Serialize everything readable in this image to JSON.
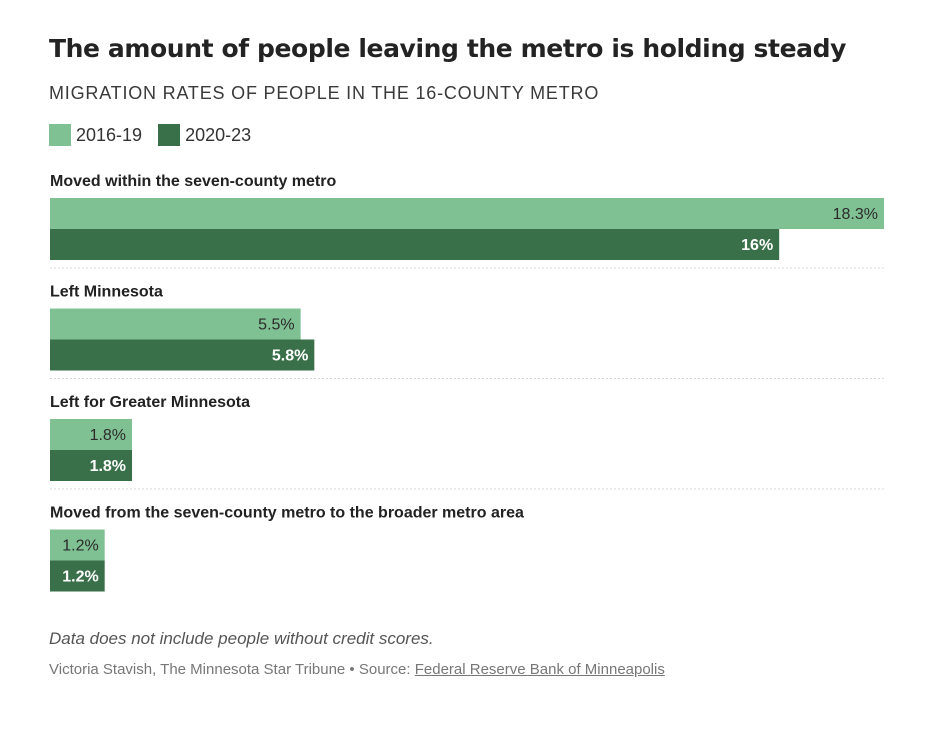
{
  "header": {
    "title": "The amount of people leaving the metro is holding steady",
    "subtitle": "MIGRATION RATES OF PEOPLE IN THE 16-COUNTY METRO"
  },
  "legend": {
    "items": [
      {
        "label": "2016-19",
        "color": "#80c194"
      },
      {
        "label": "2020-23",
        "color": "#3a7049"
      }
    ]
  },
  "chart_data": {
    "type": "bar",
    "orientation": "horizontal",
    "categories": [
      "Moved within the seven-county metro",
      "Left Minnesota",
      "Left for Greater Minnesota",
      "Moved from the seven-county metro to the broader metro area"
    ],
    "series": [
      {
        "name": "2016-19",
        "values": [
          18.3,
          5.5,
          1.8,
          1.2
        ],
        "labels": [
          "18.3%",
          "5.5%",
          "1.8%",
          "1.2%"
        ],
        "color": "#80c194",
        "label_color": "#2a2a2a"
      },
      {
        "name": "2020-23",
        "values": [
          16,
          5.8,
          1.8,
          1.2
        ],
        "labels": [
          "16%",
          "5.8%",
          "1.8%",
          "1.2%"
        ],
        "color": "#3a7049",
        "label_color": "#ffffff"
      }
    ],
    "xlim": [
      0,
      18.3
    ],
    "grid": false,
    "legend_position": "top-left"
  },
  "footer": {
    "note": "Data does not include people without credit scores.",
    "credit_prefix": "Victoria Stavish, The Minnesota Star Tribune • Source: ",
    "source_label": "Federal Reserve Bank of Minneapolis"
  }
}
